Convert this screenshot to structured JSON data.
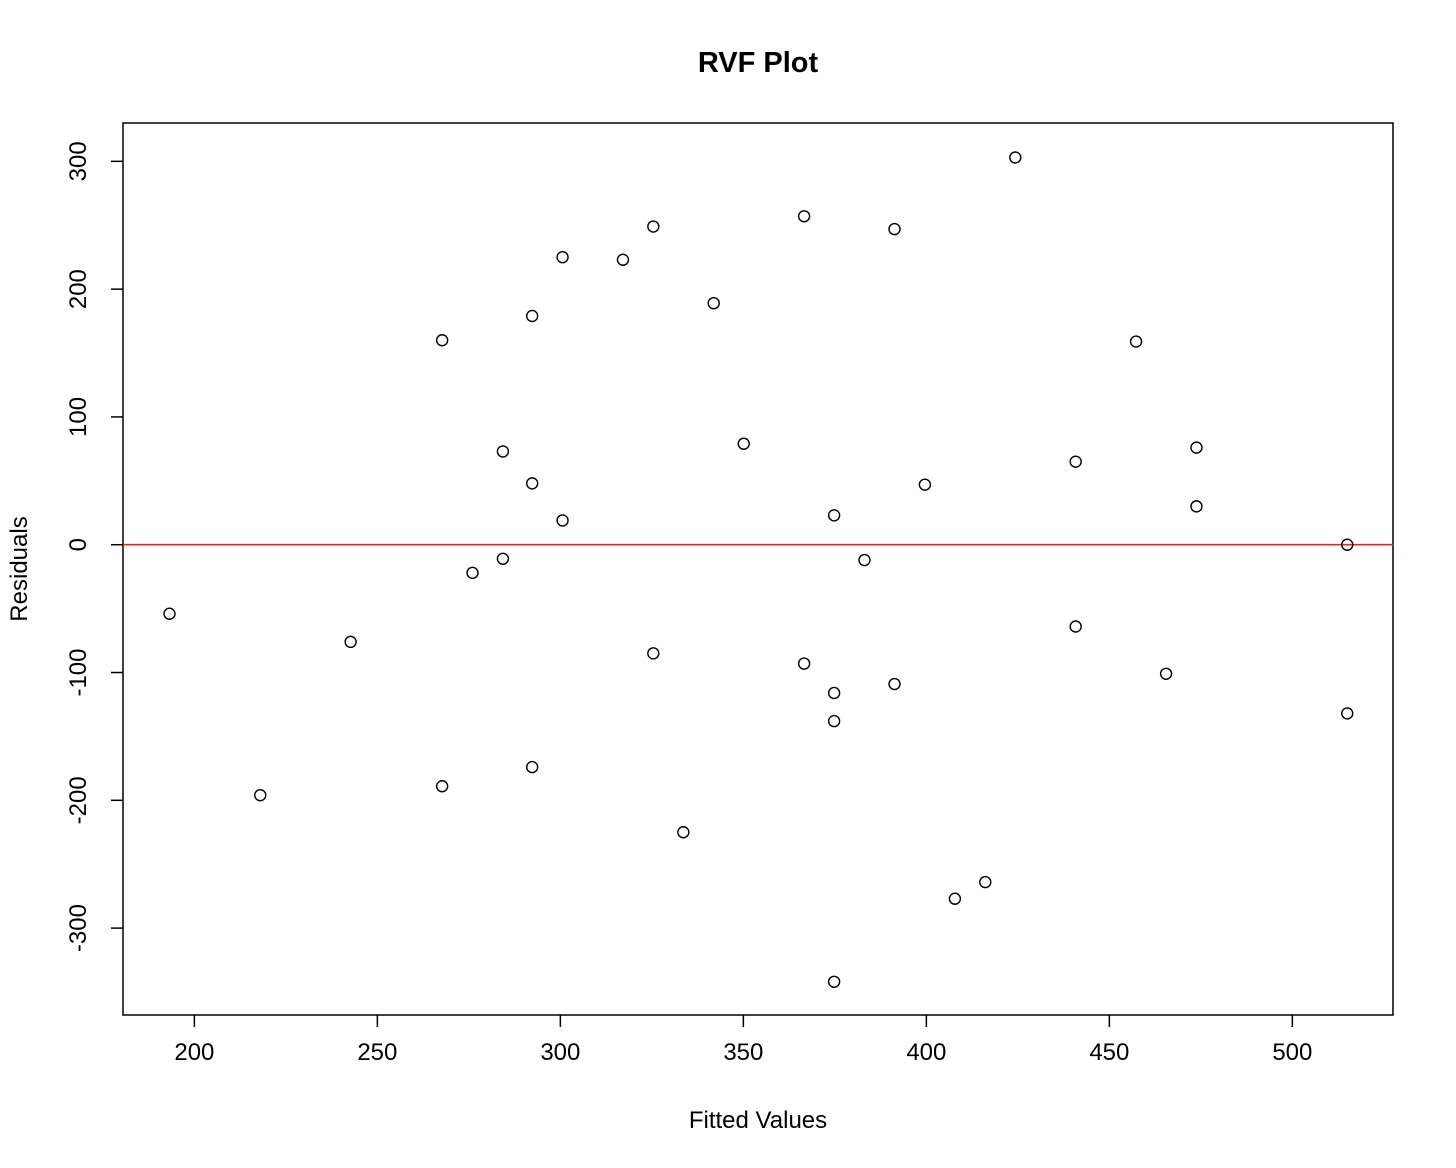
{
  "chart_data": {
    "type": "scatter",
    "title": "RVF Plot",
    "xlabel": "Fitted Values",
    "ylabel": "Residuals",
    "xlim": [
      180.5,
      527.5
    ],
    "ylim": [
      -368,
      330
    ],
    "xticks": [
      200,
      250,
      300,
      350,
      400,
      450,
      500
    ],
    "yticks": [
      300,
      200,
      100,
      0,
      -100,
      -200,
      -300
    ],
    "xtick_labels": [
      "200",
      "250",
      "300",
      "350",
      "400",
      "450",
      "500"
    ],
    "ytick_labels": [
      "300",
      "200",
      "100",
      "0",
      "-100",
      "-200",
      "-300"
    ],
    "grid": false,
    "marker": "open-circle",
    "reference_line": {
      "y": 0,
      "color": "#e8202a"
    },
    "points": [
      {
        "x": 193.2,
        "y": -54
      },
      {
        "x": 218.0,
        "y": -196
      },
      {
        "x": 242.7,
        "y": -76
      },
      {
        "x": 267.7,
        "y": 160
      },
      {
        "x": 267.7,
        "y": -189
      },
      {
        "x": 276.0,
        "y": -22
      },
      {
        "x": 284.3,
        "y": 73
      },
      {
        "x": 284.3,
        "y": -11
      },
      {
        "x": 292.3,
        "y": 179
      },
      {
        "x": 292.3,
        "y": 48
      },
      {
        "x": 292.3,
        "y": -174
      },
      {
        "x": 300.6,
        "y": 225
      },
      {
        "x": 300.6,
        "y": 19
      },
      {
        "x": 317.1,
        "y": 223
      },
      {
        "x": 325.4,
        "y": 249
      },
      {
        "x": 325.4,
        "y": -85
      },
      {
        "x": 333.6,
        "y": -225
      },
      {
        "x": 341.9,
        "y": 189
      },
      {
        "x": 350.1,
        "y": 79
      },
      {
        "x": 366.6,
        "y": 257
      },
      {
        "x": 366.6,
        "y": -93
      },
      {
        "x": 374.8,
        "y": 23
      },
      {
        "x": 374.8,
        "y": -116
      },
      {
        "x": 374.8,
        "y": -138
      },
      {
        "x": 374.8,
        "y": -342
      },
      {
        "x": 383.1,
        "y": -12
      },
      {
        "x": 391.3,
        "y": 247
      },
      {
        "x": 391.3,
        "y": -109
      },
      {
        "x": 399.6,
        "y": 47
      },
      {
        "x": 407.8,
        "y": -277
      },
      {
        "x": 416.1,
        "y": -264
      },
      {
        "x": 424.3,
        "y": 303
      },
      {
        "x": 440.8,
        "y": 65
      },
      {
        "x": 440.8,
        "y": -64
      },
      {
        "x": 457.3,
        "y": 159
      },
      {
        "x": 465.5,
        "y": -101
      },
      {
        "x": 473.8,
        "y": 76
      },
      {
        "x": 473.8,
        "y": 30
      },
      {
        "x": 515.0,
        "y": 0
      },
      {
        "x": 515.0,
        "y": -132
      }
    ]
  }
}
